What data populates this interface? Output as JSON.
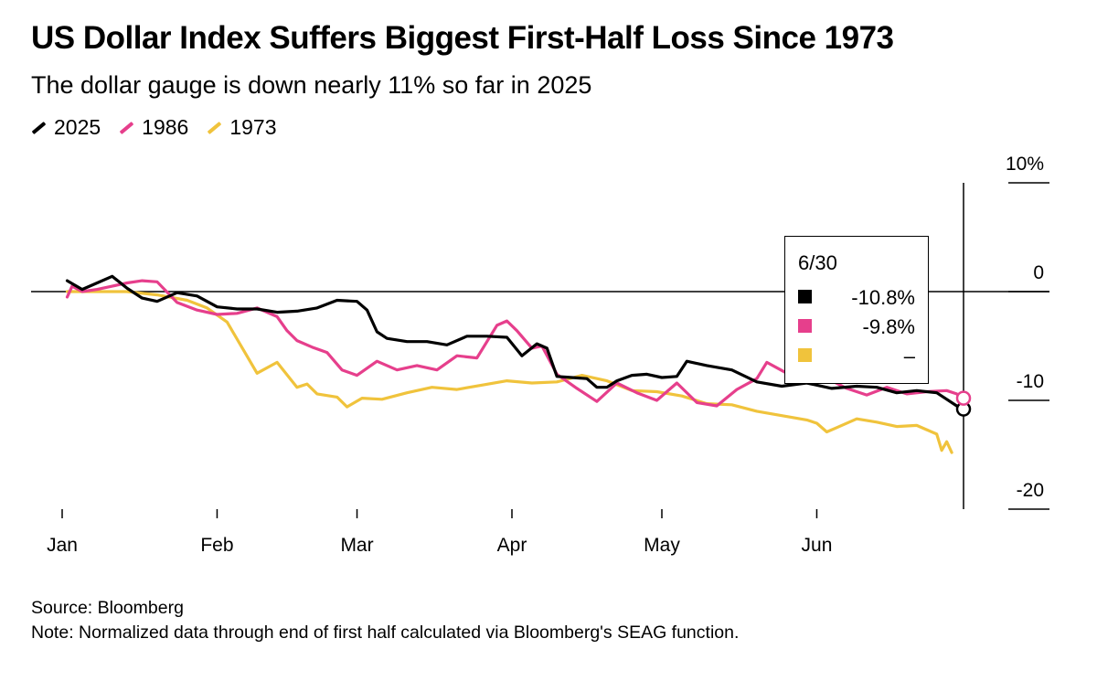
{
  "header": {
    "title": "US Dollar Index Suffers Biggest First-Half Loss Since 1973",
    "subtitle": "The dollar gauge is down nearly 11% so far in 2025"
  },
  "legend": [
    {
      "label": "2025",
      "color": "#000000"
    },
    {
      "label": "1986",
      "color": "#e63f8c"
    },
    {
      "label": "1973",
      "color": "#f0c33c"
    }
  ],
  "tooltip": {
    "date": "6/30",
    "rows": [
      {
        "series": "2025",
        "value": "-10.8%",
        "color": "#000000"
      },
      {
        "series": "1986",
        "value": "-9.8%",
        "color": "#e63f8c"
      },
      {
        "series": "1973",
        "value": "–",
        "color": "#f0c33c"
      }
    ]
  },
  "footer": {
    "source": "Source: Bloomberg",
    "note": "Note: Normalized data through end of first half calculated via Bloomberg's SEAG function."
  },
  "chart_data": {
    "type": "line",
    "title": "US Dollar Index Suffers Biggest First-Half Loss Since 1973",
    "subtitle": "The dollar gauge is down nearly 11% so far in 2025",
    "xlabel": "",
    "ylabel": "",
    "x_unit": "day of year",
    "xlim": [
      0,
      181
    ],
    "ylim": [
      -20,
      10
    ],
    "yticks": [
      10,
      0,
      -10,
      -20
    ],
    "ytick_labels": [
      "10%",
      "0",
      "-10",
      "-20"
    ],
    "xticks": [
      1,
      32,
      60,
      91,
      121,
      152
    ],
    "xtick_labels": [
      "Jan",
      "Feb",
      "Mar",
      "Apr",
      "May",
      "Jun"
    ],
    "zero_line": true,
    "grid": false,
    "series": [
      {
        "name": "2025",
        "color": "#000000",
        "x": [
          2,
          5,
          8,
          11,
          14,
          17,
          20,
          24,
          28,
          32,
          36,
          40,
          44,
          48,
          52,
          56,
          60,
          62,
          64,
          66,
          70,
          74,
          78,
          82,
          86,
          90,
          93,
          96,
          98,
          100,
          103,
          106,
          108,
          110,
          112,
          115,
          118,
          121,
          124,
          126,
          130,
          135,
          140,
          145,
          150,
          155,
          160,
          164,
          168,
          172,
          176,
          178,
          180,
          181
        ],
        "y": [
          1,
          0.2,
          0.8,
          1.4,
          0.3,
          -0.6,
          -0.9,
          -0.1,
          -0.4,
          -1.4,
          -1.6,
          -1.6,
          -1.9,
          -1.8,
          -1.5,
          -0.8,
          -0.9,
          -1.7,
          -3.7,
          -4.3,
          -4.6,
          -4.6,
          -4.9,
          -4.1,
          -4.1,
          -4.2,
          -5.9,
          -4.8,
          -5.2,
          -7.8,
          -7.9,
          -8.0,
          -8.8,
          -8.8,
          -8.2,
          -7.7,
          -7.6,
          -7.9,
          -7.8,
          -6.4,
          -6.8,
          -7.2,
          -8.3,
          -8.7,
          -8.4,
          -8.9,
          -8.7,
          -8.8,
          -9.3,
          -9.1,
          -9.3,
          -9.9,
          -10.5,
          -10.8
        ]
      },
      {
        "name": "1986",
        "color": "#e63f8c",
        "x": [
          2,
          3,
          5,
          8,
          11,
          14,
          17,
          20,
          24,
          28,
          32,
          36,
          40,
          44,
          46,
          48,
          51,
          54,
          57,
          60,
          64,
          68,
          72,
          76,
          80,
          84,
          88,
          90,
          92,
          95,
          97,
          100,
          104,
          108,
          112,
          116,
          120,
          124,
          128,
          132,
          136,
          140,
          142,
          144,
          146,
          148,
          151,
          155,
          158,
          162,
          166,
          170,
          174,
          178,
          180,
          181
        ],
        "y": [
          -0.5,
          0.5,
          0,
          0.2,
          0.5,
          0.8,
          1,
          0.9,
          -1,
          -1.7,
          -2.1,
          -2,
          -1.5,
          -2.3,
          -3.6,
          -4.5,
          -5.1,
          -5.6,
          -7.2,
          -7.7,
          -6.4,
          -7.2,
          -6.8,
          -7.2,
          -5.9,
          -6.1,
          -3.1,
          -2.7,
          -3.6,
          -5.2,
          -5.0,
          -7.6,
          -8.9,
          -10.1,
          -8.4,
          -9.3,
          -10.0,
          -8.4,
          -10.2,
          -10.5,
          -9.0,
          -8.0,
          -6.5,
          -7.0,
          -7.5,
          -8.0,
          -8.4,
          -8.2,
          -8.9,
          -9.5,
          -8.8,
          -9.4,
          -9.2,
          -9.1,
          -9.4,
          -9.8
        ]
      },
      {
        "name": "1973",
        "color": "#f0c33c",
        "x": [
          2,
          8,
          14,
          20,
          26,
          30,
          34,
          40,
          44,
          48,
          50,
          52,
          56,
          58,
          61,
          65,
          70,
          75,
          80,
          85,
          90,
          95,
          100,
          105,
          110,
          115,
          120,
          125,
          130,
          135,
          140,
          145,
          150,
          152,
          154,
          156,
          160,
          164,
          168,
          172,
          174,
          176,
          177,
          178,
          179
        ],
        "y": [
          0,
          0,
          0,
          -0.3,
          -0.8,
          -1.5,
          -2.8,
          -7.5,
          -6.5,
          -8.8,
          -8.5,
          -9.4,
          -9.7,
          -10.6,
          -9.8,
          -9.9,
          -9.3,
          -8.8,
          -9.0,
          -8.6,
          -8.2,
          -8.4,
          -8.3,
          -7.7,
          -8.2,
          -9.1,
          -9.2,
          -9.6,
          -10.3,
          -10.4,
          -11.0,
          -11.4,
          -11.8,
          -12.1,
          -12.9,
          -12.5,
          -11.7,
          -12.0,
          -12.4,
          -12.3,
          -12.7,
          -13.1,
          -14.6,
          -13.8,
          -14.8
        ]
      }
    ]
  }
}
